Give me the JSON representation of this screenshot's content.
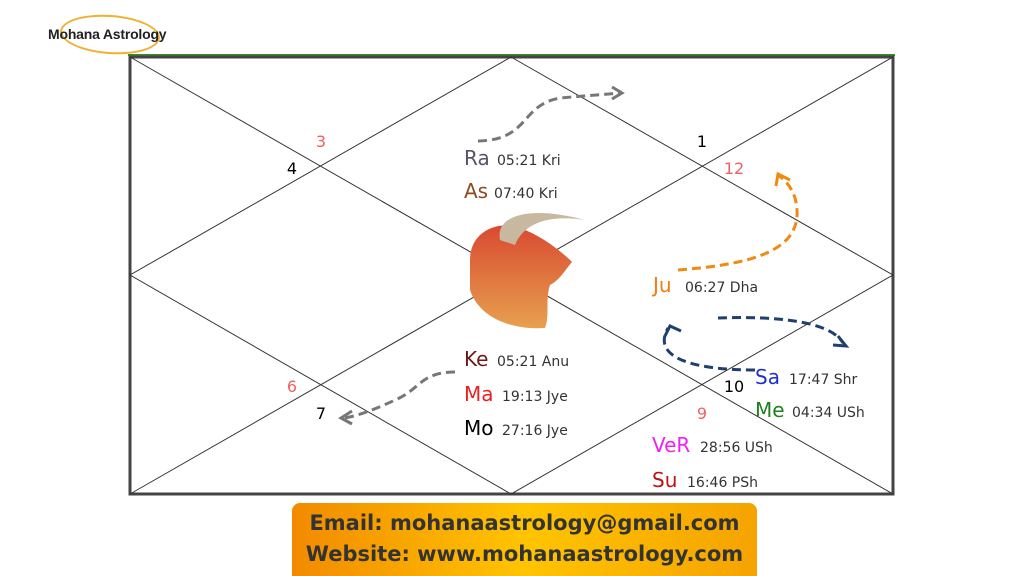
{
  "logo": {
    "text": "Mohana Astrology"
  },
  "chart": {
    "houses": [
      {
        "label": "1",
        "color": "#000000"
      },
      {
        "label": "12",
        "color": "#f06060"
      },
      {
        "label": "3",
        "color": "#f06060"
      },
      {
        "label": "4",
        "color": "#000000"
      },
      {
        "label": "6",
        "color": "#f06060"
      },
      {
        "label": "7",
        "color": "#000000"
      },
      {
        "label": "10",
        "color": "#000000"
      },
      {
        "label": "9",
        "color": "#f06060"
      }
    ],
    "planets": [
      {
        "abbr": "Ra",
        "info": "05:21 Kri",
        "color": "#555566"
      },
      {
        "abbr": "As",
        "info": "07:40 Kri",
        "color": "#8b4a20"
      },
      {
        "abbr": "Ju",
        "info": "06:27 Dha",
        "color": "#f07d10"
      },
      {
        "abbr": "Ke",
        "info": "05:21 Anu",
        "color": "#6b1a1a"
      },
      {
        "abbr": "Ma",
        "info": "19:13 Jye",
        "color": "#e82020"
      },
      {
        "abbr": "Mo",
        "info": "27:16 Jye",
        "color": "#000000"
      },
      {
        "abbr": "Sa",
        "info": "17:47 Shr",
        "color": "#2030d0"
      },
      {
        "abbr": "Me",
        "info": "04:34 USh",
        "color": "#208020"
      },
      {
        "abbr": "VeR",
        "info": "28:56 USh",
        "color": "#f020f0"
      },
      {
        "abbr": "Su",
        "info": "16:46 PSh",
        "color": "#c01010"
      }
    ],
    "sign_icon": "taurus-bull-icon"
  },
  "footer": {
    "email": "Email: mohanaastrology@gmail.com",
    "website": "Website: www.mohanaastrology.com"
  }
}
